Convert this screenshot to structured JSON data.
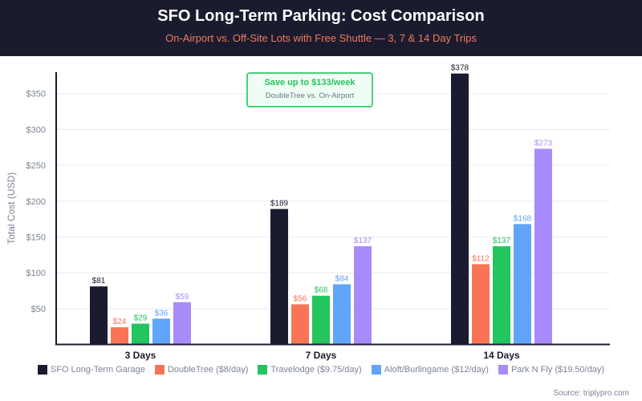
{
  "header": {
    "title": "SFO Long-Term Parking: Cost Comparison",
    "subtitle": "On-Airport vs. Off-Site Lots with Free Shuttle — 3, 7 & 14 Day Trips"
  },
  "callout": {
    "headline": "Save up to $133/week",
    "detail": "DoubleTree vs. On-Airport"
  },
  "source": "Source: triplypro.com",
  "chart_data": {
    "type": "bar",
    "ylabel": "Total Cost (USD)",
    "ylim": [
      0,
      380
    ],
    "yticks": [
      "$50",
      "$100",
      "$150",
      "$200",
      "$250",
      "$300",
      "$350"
    ],
    "ytick_values": [
      50,
      100,
      150,
      200,
      250,
      300,
      350
    ],
    "grid": true,
    "legend_position": "bottom",
    "categories": [
      "3 Days",
      "7 Days",
      "14 Days"
    ],
    "series": [
      {
        "name": "SFO Long-Term Garage",
        "color": "#1b1b2f",
        "label_color": "#1b1b2f",
        "values": [
          81,
          189,
          378
        ],
        "labels": [
          "$81",
          "$189",
          "$378"
        ]
      },
      {
        "name": "DoubleTree ($8/day)",
        "color": "#f87454",
        "label_color": "#f87454",
        "values": [
          24,
          56,
          112
        ],
        "labels": [
          "$24",
          "$56",
          "$112"
        ]
      },
      {
        "name": "Travelodge ($9.75/day)",
        "color": "#22c55e",
        "label_color": "#22c55e",
        "values": [
          29,
          68,
          137
        ],
        "labels": [
          "$29",
          "$68",
          "$137"
        ]
      },
      {
        "name": "Aloft/Burlingame ($12/day)",
        "color": "#60a5fa",
        "label_color": "#60a5fa",
        "values": [
          36,
          84,
          168
        ],
        "labels": [
          "$36",
          "$84",
          "$168"
        ]
      },
      {
        "name": "Park N Fly ($19.50/day)",
        "color": "#a78bfa",
        "label_color": "#a78bfa",
        "values": [
          59,
          137,
          273
        ],
        "labels": [
          "$59",
          "$137",
          "$273"
        ]
      }
    ]
  }
}
